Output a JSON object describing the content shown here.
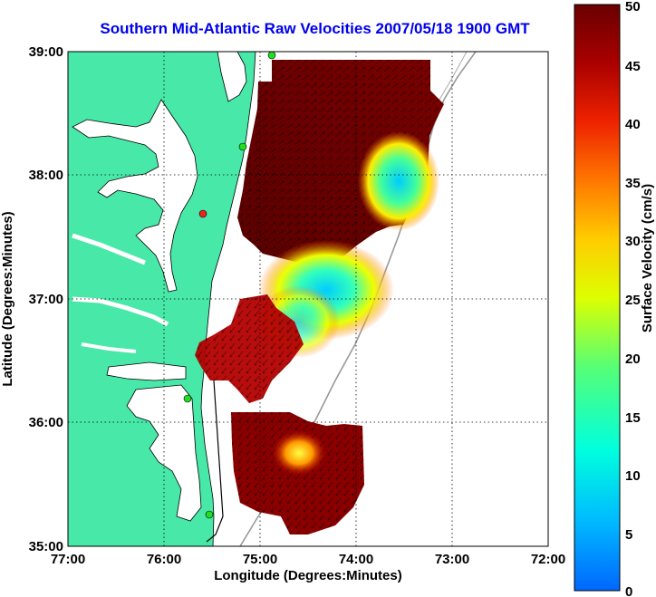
{
  "title": "Southern Mid-Atlantic Raw Velocities 2007/05/18 1900 GMT",
  "xlabel": "Longitude (Degrees:Minutes)",
  "ylabel": "Latitude (Degrees:Minutes)",
  "x_ticks": [
    "77:00",
    "76:00",
    "75:00",
    "74:00",
    "73:00",
    "72:00"
  ],
  "y_ticks": [
    "39:00",
    "38:00",
    "37:00",
    "36:00",
    "35:00"
  ],
  "colorbar": {
    "label": "Surface Velocity (cm/s)",
    "ticks": [
      "50",
      "45",
      "40",
      "35",
      "30",
      "25",
      "20",
      "15",
      "10",
      "5",
      "0"
    ],
    "range": [
      0,
      50
    ],
    "scale": [
      "#0066ff",
      "#00ccff",
      "#00ffcc",
      "#66ff66",
      "#ffff00",
      "#ffaa00",
      "#ff5500",
      "#dd0000",
      "#990000",
      "#660000"
    ]
  },
  "colors": {
    "land": "#47e8a8",
    "coast_line": "#000000",
    "grid": "#000000",
    "station_marker": "#22dd22",
    "station_marker_red": "#ee2222"
  }
}
